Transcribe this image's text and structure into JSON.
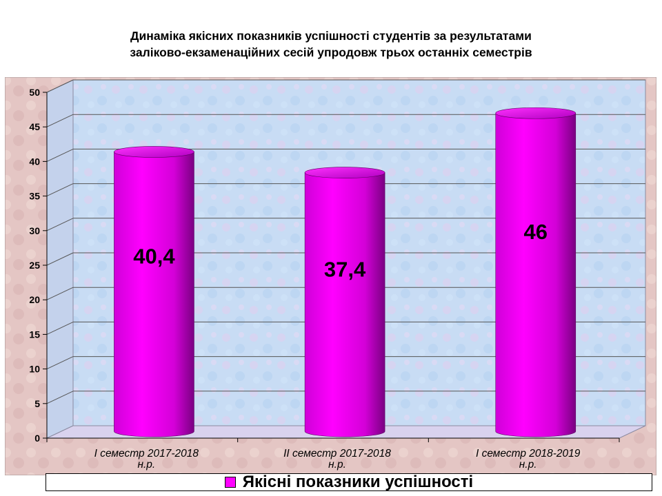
{
  "title": {
    "line1": "Динаміка якісних показників успішності студентів  за результатами",
    "line2": "заліково-екзаменаційних сесій упродовж трьох останніх семестрів"
  },
  "chart_data": {
    "type": "bar",
    "title": "Динаміка якісних показників успішності студентів  за результатами заліково-екзаменаційних сесій упродовж трьох останніх семестрів",
    "categories": [
      [
        "I семестр 2017-2018",
        "н.р."
      ],
      [
        "II семестр 2017-2018",
        "н.р."
      ],
      [
        "I семестр 2018-2019",
        "н.р."
      ]
    ],
    "series": [
      {
        "name": "Якісні показники успішності",
        "values": [
          40.4,
          37.4,
          46
        ],
        "labels": [
          "40,4",
          "37,4",
          "46"
        ],
        "color": "#ff00ff"
      }
    ],
    "ylim": [
      0,
      50
    ],
    "yticks": [
      0,
      5,
      10,
      15,
      20,
      25,
      30,
      35,
      40,
      45,
      50
    ],
    "grid": true,
    "legend_position": "bottom",
    "bar_shape": "cylinder-3d"
  },
  "colors": {
    "bar": "#ff00ff",
    "bar_dark": "#8a0090",
    "wall": "#c9dcf2",
    "floor": "#d9d2ee",
    "outer": "#e6c9c9"
  }
}
